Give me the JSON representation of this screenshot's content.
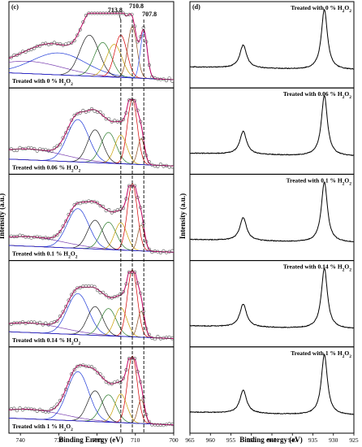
{
  "chart_data": [
    {
      "type": "line",
      "panel_label": "(c)",
      "xlabel": "Binding Energy (eV)",
      "ylabel": "Intensity (a.u.)",
      "xlim": [
        700,
        743
      ],
      "x_reversed": true,
      "xticks": [
        740,
        730,
        720,
        710,
        700
      ],
      "reference_lines": [
        713.8,
        710.8,
        707.8
      ],
      "peak_annotations": [
        "713.8",
        "710.8",
        "707.8"
      ],
      "series": [
        {
          "name": "Treated with 0 % H2O2",
          "label_main": "Treated with 0 % H",
          "label_tail": "O",
          "label_sub": "2"
        },
        {
          "name": "Treated with 0.06 % H2O2",
          "label_main": "Treated with 0.06 % H",
          "label_tail": "O",
          "label_sub": "2"
        },
        {
          "name": "Treated with 0.1 % H2O2",
          "label_main": "Treated with 0.1 % H",
          "label_tail": "O",
          "label_sub": "2"
        },
        {
          "name": "Treated with 0.14 % H2O2",
          "label_main": "Treated with 0.14 % H",
          "label_tail": "O",
          "label_sub": "2"
        },
        {
          "name": "Treated with 1 % H2O2",
          "label_main": "Treated with 1 % H",
          "label_tail": "O",
          "label_sub": "2"
        }
      ],
      "peaks_per_panel": [
        [
          [
            738,
            9,
            0.18
          ],
          [
            730,
            7,
            0.32
          ],
          [
            722,
            2.5,
            0.6
          ],
          [
            718.5,
            2.2,
            0.5
          ],
          [
            715.5,
            2.0,
            0.48
          ],
          [
            713.8,
            1.6,
            0.62
          ],
          [
            710.8,
            1.2,
            0.75
          ],
          [
            707.8,
            0.9,
            0.68
          ]
        ],
        [
          [
            738,
            9,
            0.16
          ],
          [
            725,
            2.8,
            0.62
          ],
          [
            720.5,
            2.0,
            0.48
          ],
          [
            717,
            2.0,
            0.45
          ],
          [
            713.8,
            1.6,
            0.42
          ],
          [
            710.8,
            1.3,
            0.95
          ],
          [
            708.5,
            0.9,
            0.38
          ]
        ],
        [
          [
            738,
            9,
            0.14
          ],
          [
            725,
            2.8,
            0.58
          ],
          [
            720.5,
            2.0,
            0.42
          ],
          [
            717,
            2.0,
            0.4
          ],
          [
            713.8,
            1.6,
            0.4
          ],
          [
            710.8,
            1.3,
            0.98
          ],
          [
            708.5,
            0.9,
            0.38
          ]
        ],
        [
          [
            738,
            9,
            0.14
          ],
          [
            725,
            2.8,
            0.6
          ],
          [
            720.5,
            2.0,
            0.42
          ],
          [
            717,
            2.0,
            0.4
          ],
          [
            713.8,
            1.6,
            0.42
          ],
          [
            710.8,
            1.3,
            0.98
          ],
          [
            708.5,
            0.9,
            0.38
          ]
        ],
        [
          [
            738,
            9,
            0.14
          ],
          [
            725,
            2.8,
            0.72
          ],
          [
            720.5,
            2.0,
            0.45
          ],
          [
            717,
            2.0,
            0.4
          ],
          [
            713.8,
            1.6,
            0.42
          ],
          [
            710.8,
            1.3,
            0.98
          ],
          [
            708.5,
            0.9,
            0.35
          ]
        ]
      ]
    },
    {
      "type": "line",
      "panel_label": "(d)",
      "xlabel": "Binding energy (eV)",
      "xlim": [
        925,
        965
      ],
      "x_reversed": true,
      "xticks": [
        965,
        960,
        955,
        950,
        945,
        940,
        935,
        930,
        925
      ],
      "series": [
        {
          "name": "Treated with 0 % H2O2",
          "label_main": "Treated with 0 % H",
          "label_tail": "O",
          "label_sub": "2"
        },
        {
          "name": "Treated with 0.06 % H2O2",
          "label_main": "Treated with 0.06 % H",
          "label_tail": "O",
          "label_sub": "2"
        },
        {
          "name": "Treated with 0.1 % H2O2",
          "label_main": "Treated with 0.1 % H",
          "label_tail": "O",
          "label_sub": "2"
        },
        {
          "name": "Treated with 0.14 % H2O2",
          "label_main": "Treated with 0.14 % H",
          "label_tail": "O",
          "label_sub": "2"
        },
        {
          "name": "Treated with 1 % H2O2",
          "label_main": "Treated with 1 % H",
          "label_tail": "O",
          "label_sub": "2"
        }
      ],
      "peaks": [
        [
          952.0,
          1.0,
          0.38
        ],
        [
          932.2,
          0.9,
          1.0
        ]
      ]
    }
  ]
}
